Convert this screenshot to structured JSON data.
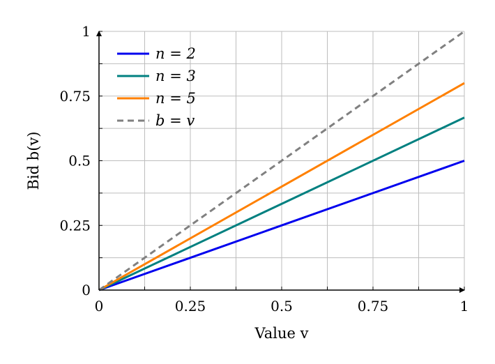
{
  "chart_data": {
    "type": "line",
    "xlabel": "Value v",
    "ylabel": "Bid b(v)",
    "xlim": [
      0,
      1
    ],
    "ylim": [
      0,
      1
    ],
    "x_ticks": [
      0,
      0.25,
      0.5,
      0.75,
      1
    ],
    "x_tick_labels": [
      "0",
      "0.25",
      "0.5",
      "0.75",
      "1"
    ],
    "y_ticks": [
      0,
      0.25,
      0.5,
      0.75,
      1
    ],
    "y_tick_labels": [
      "0",
      "0.25",
      "0.5",
      "0.75",
      "1"
    ],
    "grid": true,
    "legend_position": "top-left",
    "series": [
      {
        "name": "n = 2",
        "x": [
          0,
          1
        ],
        "y": [
          0,
          0.5
        ],
        "color": "#0000ee",
        "dash": "solid"
      },
      {
        "name": "n = 3",
        "x": [
          0,
          1
        ],
        "y": [
          0,
          0.6667
        ],
        "color": "#008080",
        "dash": "solid"
      },
      {
        "name": "n = 5",
        "x": [
          0,
          1
        ],
        "y": [
          0,
          0.8
        ],
        "color": "#ff8000",
        "dash": "solid"
      },
      {
        "name": "b = v",
        "x": [
          0,
          1
        ],
        "y": [
          0,
          1
        ],
        "color": "#808080",
        "dash": "dashed"
      }
    ]
  }
}
